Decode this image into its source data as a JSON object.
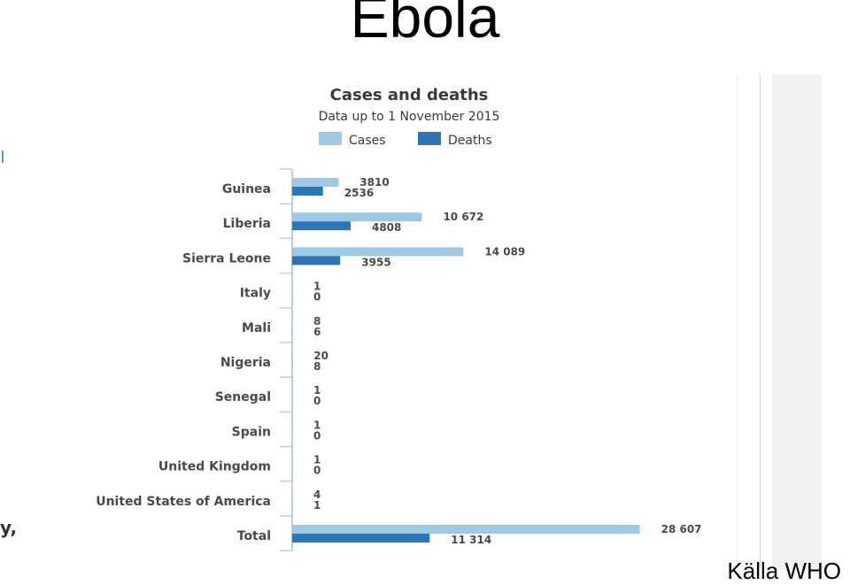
{
  "slide": {
    "title": "Ebola",
    "source": "Källa WHO",
    "cut_text": "y,"
  },
  "colors": {
    "cases": "#9fc9e3",
    "deaths": "#2e75b6",
    "axis": "#b9cfe0"
  },
  "chart_data": {
    "type": "bar",
    "orientation": "horizontal",
    "title": "Cases and deaths",
    "subtitle": "Data up to 1 November 2015",
    "legend_position": "top",
    "grid": false,
    "categories": [
      "Guinea",
      "Liberia",
      "Sierra Leone",
      "Italy",
      "Mali",
      "Nigeria",
      "Senegal",
      "Spain",
      "United Kingdom",
      "United States of America",
      "Total"
    ],
    "series": [
      {
        "name": "Cases",
        "values": [
          3810,
          10672,
          14089,
          1,
          8,
          20,
          1,
          1,
          1,
          4,
          28607
        ],
        "labels": [
          "3810",
          "10 672",
          "14 089",
          "1",
          "8",
          "20",
          "1",
          "1",
          "1",
          "4",
          "28 607"
        ]
      },
      {
        "name": "Deaths",
        "values": [
          2536,
          4808,
          3955,
          0,
          6,
          8,
          0,
          0,
          0,
          1,
          11314
        ],
        "labels": [
          "2536",
          "4808",
          "3955",
          "0",
          "6",
          "8",
          "0",
          "0",
          "0",
          "1",
          "11 314"
        ]
      }
    ],
    "xlim": [
      0,
      29000
    ]
  }
}
